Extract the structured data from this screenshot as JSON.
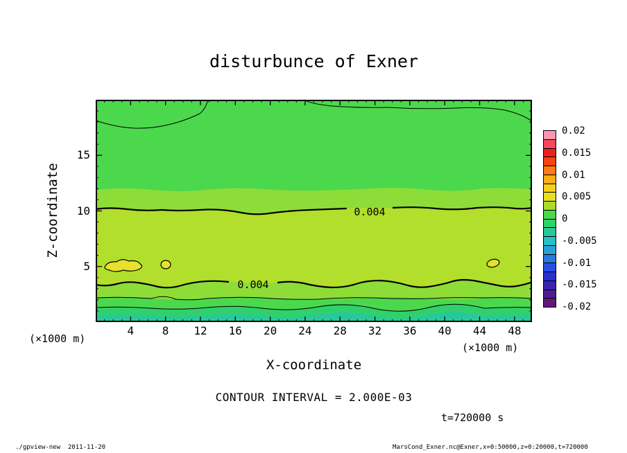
{
  "page": {
    "contour_interval_label": "CONTOUR INTERVAL = 2.000E-03",
    "time_label": "t=720000 s",
    "footer_left": "./gpview-new  2011-11-20",
    "footer_right": "MarsCond_Exner.nc@Exner,x=0:50000,z=0:20000,t=720000"
  },
  "chart_data": {
    "type": "heatmap",
    "subtype": "filled-contour",
    "title": "disturbunce of Exner",
    "xlabel": "X-coordinate",
    "ylabel": "Z-coordinate",
    "x_unit_label": "(×1000 m)",
    "z_unit_label": "(×1000 m)",
    "xlim": [
      0,
      50
    ],
    "zlim": [
      0,
      20
    ],
    "x_ticks": [
      4,
      8,
      12,
      16,
      20,
      24,
      28,
      32,
      36,
      40,
      44,
      48
    ],
    "z_ticks": [
      5,
      10,
      15
    ],
    "x_minor_step": 1,
    "z_minor_step": 1,
    "contour_interval": 0.002,
    "labeled_contours": [
      {
        "value": 0.004,
        "label": "0.004",
        "location": "z≈10, x≈31"
      },
      {
        "value": 0.004,
        "label": "0.004",
        "location": "z≈3.3, x≈17"
      }
    ],
    "field_summary": {
      "description": "Horizontally stratified Exner-function disturbance: ≈0 (green) above z≈12; 0.002 band (light green) z≈10–12; 0.002–0.004 band (yellow-green) z≈3.5–10; local maxima >0.004 (yellow) near z≈5 at x≈3–6, x≈8 and x≈45.5; values fall through 0.002 and 0 below z≈2.2 to slightly negative (teal) at the bottom boundary; weak wavy 0-level contours near the top boundary (z≈18–20)",
      "bands_z_approx": [
        {
          "z_from": 12,
          "z_to": 20,
          "value": "≈0"
        },
        {
          "z_from": 10,
          "z_to": 12,
          "value": "≈0.002"
        },
        {
          "z_from": 3.5,
          "z_to": 10,
          "value": "0.002–0.004"
        },
        {
          "z_from": 2.2,
          "z_to": 3.5,
          "value": "≈0.002"
        },
        {
          "z_from": 1.3,
          "z_to": 2.2,
          "value": "0–0.002"
        },
        {
          "z_from": 0,
          "z_to": 1.3,
          "value": "≤0"
        }
      ],
      "local_maxima": [
        {
          "x": 4.5,
          "z": 5,
          "value": ">0.004"
        },
        {
          "x": 8,
          "z": 5,
          "value": ">0.004"
        },
        {
          "x": 45.5,
          "z": 5,
          "value": ">0.004"
        }
      ]
    },
    "colorbar": {
      "tick_labels": [
        "0.02",
        "0.015",
        "0.01",
        "0.005",
        "0",
        "-0.005",
        "-0.01",
        "-0.015",
        "-0.02"
      ],
      "value_top": 0.02,
      "value_bottom": -0.02,
      "segment_colors_top_to_bottom": [
        "#fc96b4",
        "#f4485c",
        "#ec2020",
        "#f44414",
        "#fc7c14",
        "#fcac14",
        "#f8d018",
        "#e4e020",
        "#aadc2c",
        "#4cd84c",
        "#30d06c",
        "#28c89c",
        "#28c0c8",
        "#28a0d8",
        "#2878e0",
        "#2850e0",
        "#2830d0",
        "#3824b0",
        "#4c1c90",
        "#601878"
      ]
    },
    "colors": {
      "background_field": "#4cd84c",
      "band_light_green": "#8edc38",
      "band_yellow_green": "#b2de2c",
      "blob_yellow": "#e6e22a",
      "band_below_zero": "#30d06c",
      "band_bottom_teal": "#28c89c",
      "frame": "#000000"
    }
  }
}
